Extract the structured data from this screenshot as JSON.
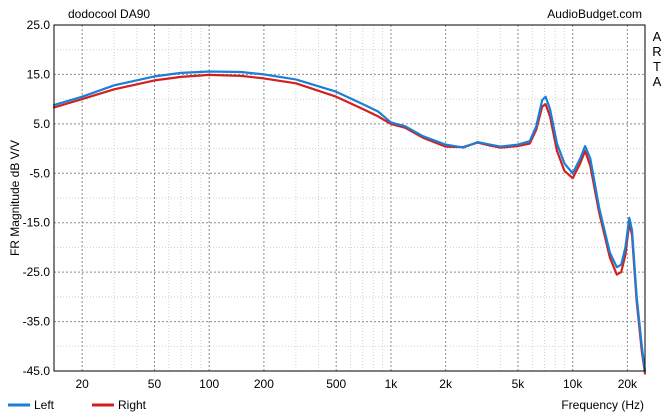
{
  "chart_data": {
    "type": "line",
    "title": "dodocool DA90",
    "source_label": "AudioBudget.com",
    "watermark": "ARTA",
    "ylabel": "FR Magnitude dB V/V",
    "xlabel": "Frequency (Hz)",
    "xscale": "log",
    "xlim": [
      14,
      25000
    ],
    "ylim": [
      -45,
      25
    ],
    "y_ticks": [
      "25.0",
      "15.0",
      "5.0",
      "-5.0",
      "-15.0",
      "-25.0",
      "-35.0",
      "-45.0"
    ],
    "y_tick_values": [
      25,
      15,
      5,
      -5,
      -15,
      -25,
      -35,
      -45
    ],
    "x_ticks": [
      "20",
      "50",
      "100",
      "200",
      "500",
      "1k",
      "2k",
      "5k",
      "10k",
      "20k"
    ],
    "x_tick_values": [
      20,
      50,
      100,
      200,
      500,
      1000,
      2000,
      5000,
      10000,
      20000
    ],
    "grid": true,
    "legend_position": "bottom-left",
    "series": [
      {
        "name": "Left",
        "color": "#1a7fd6",
        "points": [
          [
            14,
            8.8
          ],
          [
            20,
            10.5
          ],
          [
            30,
            12.8
          ],
          [
            50,
            14.6
          ],
          [
            70,
            15.3
          ],
          [
            100,
            15.6
          ],
          [
            150,
            15.5
          ],
          [
            200,
            15.0
          ],
          [
            300,
            14.0
          ],
          [
            500,
            11.5
          ],
          [
            700,
            9.0
          ],
          [
            850,
            7.5
          ],
          [
            1000,
            5.3
          ],
          [
            1200,
            4.5
          ],
          [
            1500,
            2.5
          ],
          [
            2000,
            0.8
          ],
          [
            2500,
            0.2
          ],
          [
            3000,
            1.3
          ],
          [
            3500,
            0.8
          ],
          [
            4000,
            0.4
          ],
          [
            5000,
            0.8
          ],
          [
            5800,
            1.5
          ],
          [
            6300,
            4.5
          ],
          [
            6800,
            9.8
          ],
          [
            7100,
            10.5
          ],
          [
            7500,
            8.0
          ],
          [
            8200,
            1.0
          ],
          [
            9000,
            -3.0
          ],
          [
            10000,
            -5.0
          ],
          [
            11000,
            -2.0
          ],
          [
            11700,
            0.5
          ],
          [
            12500,
            -2.0
          ],
          [
            14000,
            -12.0
          ],
          [
            16000,
            -21.0
          ],
          [
            17500,
            -24.0
          ],
          [
            18500,
            -23.5
          ],
          [
            19500,
            -20.0
          ],
          [
            20500,
            -14.0
          ],
          [
            21200,
            -16.5
          ],
          [
            22500,
            -30.0
          ],
          [
            24000,
            -40.0
          ],
          [
            25000,
            -45.0
          ]
        ]
      },
      {
        "name": "Right",
        "color": "#d41f1f",
        "points": [
          [
            14,
            8.3
          ],
          [
            20,
            10.0
          ],
          [
            30,
            12.0
          ],
          [
            50,
            13.8
          ],
          [
            70,
            14.5
          ],
          [
            100,
            14.9
          ],
          [
            150,
            14.7
          ],
          [
            200,
            14.2
          ],
          [
            300,
            13.2
          ],
          [
            500,
            10.5
          ],
          [
            700,
            8.0
          ],
          [
            850,
            6.5
          ],
          [
            1000,
            5.0
          ],
          [
            1200,
            4.2
          ],
          [
            1500,
            2.2
          ],
          [
            2000,
            0.4
          ],
          [
            2500,
            0.3
          ],
          [
            3000,
            1.2
          ],
          [
            3500,
            0.6
          ],
          [
            4000,
            0.2
          ],
          [
            5000,
            0.5
          ],
          [
            5800,
            1.0
          ],
          [
            6300,
            3.8
          ],
          [
            6800,
            8.5
          ],
          [
            7100,
            9.0
          ],
          [
            7500,
            6.5
          ],
          [
            8200,
            -0.5
          ],
          [
            9000,
            -4.5
          ],
          [
            10000,
            -6.0
          ],
          [
            11000,
            -3.0
          ],
          [
            11700,
            -0.5
          ],
          [
            12500,
            -3.5
          ],
          [
            14000,
            -13.0
          ],
          [
            16000,
            -22.0
          ],
          [
            17500,
            -25.5
          ],
          [
            18500,
            -25.0
          ],
          [
            19500,
            -21.5
          ],
          [
            20500,
            -15.0
          ],
          [
            21200,
            -17.5
          ],
          [
            22500,
            -31.0
          ],
          [
            24000,
            -41.0
          ],
          [
            25000,
            -45.5
          ]
        ]
      }
    ]
  }
}
